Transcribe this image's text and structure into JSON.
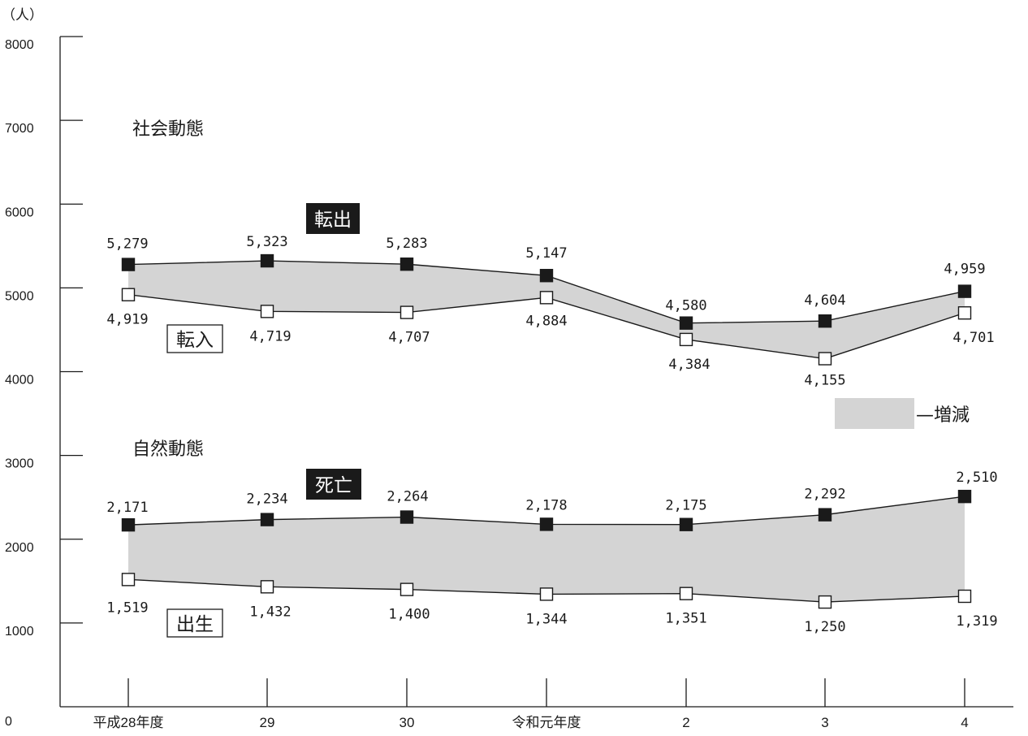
{
  "chart_data": {
    "type": "line",
    "unit": "（人）",
    "ylim": [
      0,
      8000
    ],
    "yticks": [
      0,
      1000,
      2000,
      3000,
      4000,
      5000,
      6000,
      7000,
      8000
    ],
    "categories": [
      "平成28年度",
      "29",
      "30",
      "令和元年度",
      "2",
      "3",
      "4"
    ],
    "groups": [
      {
        "title": "社会動態",
        "series": [
          {
            "name": "転出",
            "style": "filled",
            "values": [
              5279,
              5323,
              5283,
              5147,
              4580,
              4604,
              4959
            ],
            "labels": [
              "5,279",
              "5,323",
              "5,283",
              "5,147",
              "4,580",
              "4,604",
              "4,959"
            ]
          },
          {
            "name": "転入",
            "style": "open",
            "values": [
              4919,
              4719,
              4707,
              4884,
              4384,
              4155,
              4701
            ],
            "labels": [
              "4,919",
              "4,719",
              "4,707",
              "4,884",
              "4,384",
              "4,155",
              "4,701"
            ]
          }
        ]
      },
      {
        "title": "自然動態",
        "series": [
          {
            "name": "死亡",
            "style": "filled",
            "values": [
              2171,
              2234,
              2264,
              2178,
              2175,
              2292,
              2510
            ],
            "labels": [
              "2,171",
              "2,234",
              "2,264",
              "2,178",
              "2,175",
              "2,292",
              "2,510"
            ]
          },
          {
            "name": "出生",
            "style": "open",
            "values": [
              1519,
              1432,
              1400,
              1344,
              1351,
              1250,
              1319
            ],
            "labels": [
              "1,519",
              "1,432",
              "1,400",
              "1,344",
              "1,351",
              "1,250",
              "1,319"
            ]
          }
        ]
      }
    ],
    "legend": {
      "label": "—増減",
      "color": "#d4d4d4"
    }
  }
}
